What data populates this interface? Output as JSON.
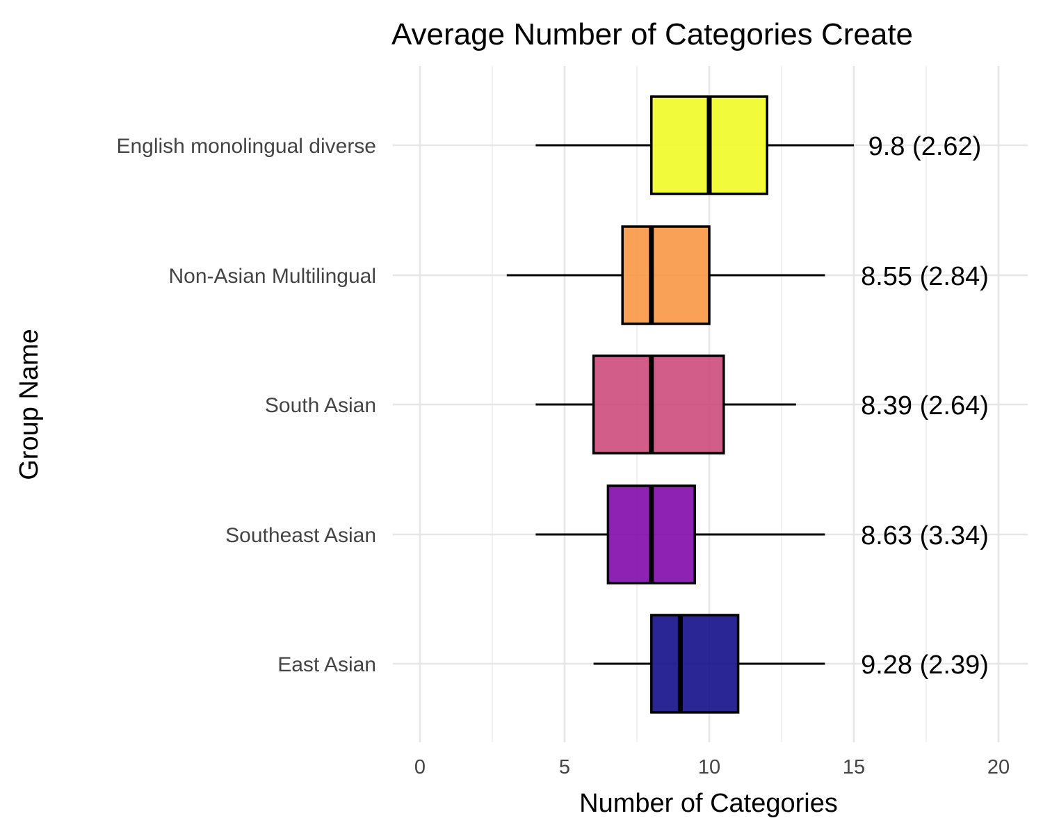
{
  "chart_data": {
    "type": "boxplot",
    "title": "Average Number of Categories Create",
    "xlabel": "Number of Categories",
    "ylabel": "Group Name",
    "xlim": [
      0,
      20
    ],
    "x_ticks": [
      0,
      5,
      10,
      15,
      20
    ],
    "x_tick_labels": [
      "0",
      "5",
      "10",
      "15",
      "20"
    ],
    "grid": true,
    "legend": "none",
    "categories": [
      "English monolingual diverse",
      "Non-Asian Multilingual",
      "South Asian",
      "Southeast Asian",
      "East Asian"
    ],
    "series": [
      {
        "name": "English monolingual diverse",
        "whisker_low": 4,
        "q1": 8,
        "median": 10,
        "q3": 12,
        "whisker_high": 15,
        "mean": 9.8,
        "sd": 2.62,
        "label": "9.8 (2.62)",
        "color": "#f0f921"
      },
      {
        "name": "Non-Asian Multilingual",
        "whisker_low": 3,
        "q1": 7,
        "median": 8,
        "q3": 10,
        "whisker_high": 14,
        "mean": 8.55,
        "sd": 2.84,
        "label": "8.55 (2.84)",
        "color": "#f89540"
      },
      {
        "name": "South Asian",
        "whisker_low": 4,
        "q1": 6,
        "median": 8,
        "q3": 10.5,
        "whisker_high": 13,
        "mean": 8.39,
        "sd": 2.64,
        "label": "8.39 (2.64)",
        "color": "#cc4778"
      },
      {
        "name": "Southeast Asian",
        "whisker_low": 4,
        "q1": 6.5,
        "median": 8,
        "q3": 9.5,
        "whisker_high": 14,
        "mean": 8.63,
        "sd": 3.34,
        "label": "8.63 (3.34)",
        "color": "#7e03a8"
      },
      {
        "name": "East Asian",
        "whisker_low": 6,
        "q1": 8,
        "median": 9,
        "q3": 11,
        "whisker_high": 14,
        "mean": 9.28,
        "sd": 2.39,
        "label": "9.28 (2.39)",
        "color": "#0d0887"
      }
    ]
  }
}
